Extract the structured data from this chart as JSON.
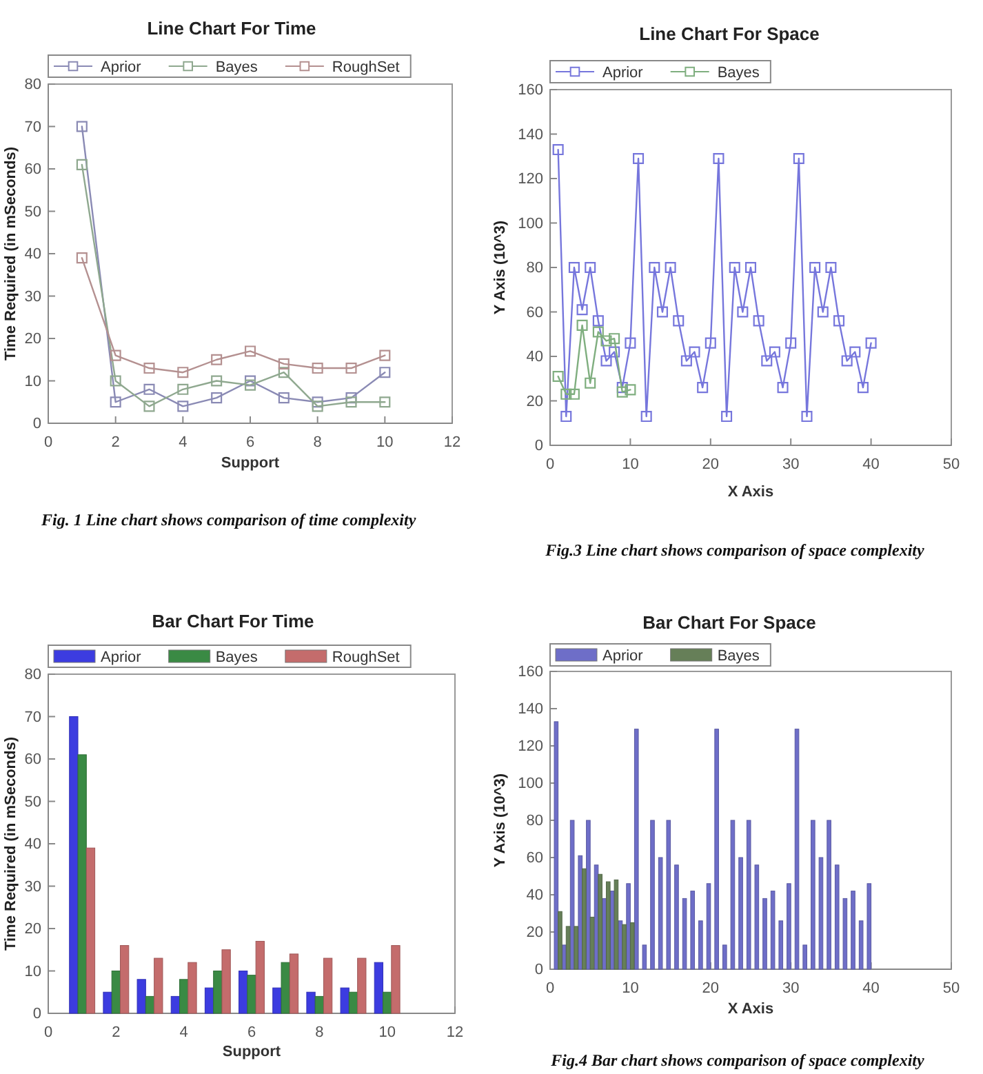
{
  "chart_data": [
    {
      "type": "line",
      "title": "Line Chart For Time",
      "xlabel": "Support",
      "ylabel": "Time Required (in mSeconds)",
      "x": [
        1,
        2,
        3,
        4,
        5,
        6,
        7,
        8,
        9,
        10
      ],
      "xlim": [
        0,
        12
      ],
      "xticks": [
        0,
        2,
        4,
        6,
        8,
        10,
        12
      ],
      "ylim": [
        0,
        80
      ],
      "yticks": [
        0,
        10,
        20,
        30,
        40,
        50,
        60,
        70,
        80
      ],
      "legend": "top left",
      "marker": "square",
      "series": [
        {
          "name": "Aprior",
          "color": "#8a8ab4",
          "values": [
            70,
            5,
            8,
            4,
            6,
            10,
            6,
            5,
            6,
            12
          ]
        },
        {
          "name": "Bayes",
          "color": "#8fa88f",
          "values": [
            61,
            10,
            4,
            8,
            10,
            9,
            12,
            4,
            5,
            5
          ]
        },
        {
          "name": "RoughSet",
          "color": "#b49090",
          "values": [
            39,
            16,
            13,
            12,
            15,
            17,
            14,
            13,
            13,
            16
          ]
        }
      ],
      "annotations": [
        "Fig. 1 Line chart shows comparison of time complexity"
      ]
    },
    {
      "type": "line",
      "title": "Line Chart For Space",
      "xlabel": "X Axis",
      "ylabel": "Y Axis (10^3)",
      "x": [
        1,
        2,
        3,
        4,
        5,
        6,
        7,
        8,
        9,
        10,
        11,
        12,
        13,
        14,
        15,
        16,
        17,
        18,
        19,
        20,
        21,
        22,
        23,
        24,
        25,
        26,
        27,
        28,
        29,
        30,
        31,
        32,
        33,
        34,
        35,
        36,
        37,
        38,
        39,
        40
      ],
      "xlim": [
        0,
        50
      ],
      "xticks": [
        0,
        10,
        20,
        30,
        40,
        50
      ],
      "ylim": [
        0,
        160
      ],
      "yticks": [
        0,
        20,
        40,
        60,
        80,
        100,
        120,
        140,
        160
      ],
      "legend": "top left",
      "marker": "square",
      "series": [
        {
          "name": "Aprior",
          "color": "#7676dc",
          "values": [
            133,
            13,
            80,
            61,
            80,
            56,
            38,
            42,
            26,
            46,
            129,
            13,
            80,
            60,
            80,
            56,
            38,
            42,
            26,
            46,
            129,
            13,
            80,
            60,
            80,
            56,
            38,
            42,
            26,
            46,
            129,
            13,
            80,
            60,
            80,
            56,
            38,
            42,
            26,
            46
          ]
        },
        {
          "name": "Bayes",
          "color": "#7fae7f",
          "x": [
            1,
            2,
            3,
            4,
            5,
            6,
            7,
            8,
            9,
            10
          ],
          "values": [
            31,
            23,
            23,
            54,
            28,
            51,
            47,
            48,
            24,
            25
          ]
        }
      ],
      "annotations": [
        "Fig.3 Line chart shows comparison of space complexity"
      ]
    },
    {
      "type": "bar",
      "title": "Bar Chart For Time",
      "xlabel": "Support",
      "ylabel": "Time Required (in mSeconds)",
      "x": [
        1,
        2,
        3,
        4,
        5,
        6,
        7,
        8,
        9,
        10
      ],
      "xlim": [
        0,
        12
      ],
      "xticks": [
        0,
        2,
        4,
        6,
        8,
        10,
        12
      ],
      "ylim": [
        0,
        80
      ],
      "yticks": [
        0,
        10,
        20,
        30,
        40,
        50,
        60,
        70,
        80
      ],
      "legend": "top left",
      "series": [
        {
          "name": "Aprior",
          "color": "#3c3ce0",
          "values": [
            70,
            5,
            8,
            4,
            6,
            10,
            6,
            5,
            6,
            12
          ]
        },
        {
          "name": "Bayes",
          "color": "#3a8a44",
          "values": [
            61,
            10,
            4,
            8,
            10,
            9,
            12,
            4,
            5,
            5
          ]
        },
        {
          "name": "RoughSet",
          "color": "#c46c6c",
          "values": [
            39,
            16,
            13,
            12,
            15,
            17,
            14,
            13,
            13,
            16
          ]
        }
      ]
    },
    {
      "type": "bar",
      "title": "Bar Chart For Space",
      "xlabel": "X Axis",
      "ylabel": "Y Axis (10^3)",
      "x": [
        1,
        2,
        3,
        4,
        5,
        6,
        7,
        8,
        9,
        10,
        11,
        12,
        13,
        14,
        15,
        16,
        17,
        18,
        19,
        20,
        21,
        22,
        23,
        24,
        25,
        26,
        27,
        28,
        29,
        30,
        31,
        32,
        33,
        34,
        35,
        36,
        37,
        38,
        39,
        40
      ],
      "xlim": [
        0,
        50
      ],
      "xticks": [
        0,
        10,
        20,
        30,
        40,
        50
      ],
      "ylim": [
        0,
        160
      ],
      "yticks": [
        0,
        20,
        40,
        60,
        80,
        100,
        120,
        140,
        160
      ],
      "legend": "top left",
      "series": [
        {
          "name": "Aprior",
          "color": "#6e6ec8",
          "values": [
            133,
            13,
            80,
            61,
            80,
            56,
            38,
            42,
            26,
            46,
            129,
            13,
            80,
            60,
            80,
            56,
            38,
            42,
            26,
            46,
            129,
            13,
            80,
            60,
            80,
            56,
            38,
            42,
            26,
            46,
            129,
            13,
            80,
            60,
            80,
            56,
            38,
            42,
            26,
            46
          ]
        },
        {
          "name": "Bayes",
          "color": "#667f58",
          "x": [
            1,
            2,
            3,
            4,
            5,
            6,
            7,
            8,
            9,
            10
          ],
          "values": [
            31,
            23,
            23,
            54,
            28,
            51,
            47,
            48,
            24,
            25
          ]
        }
      ],
      "annotations": [
        "Fig.4 Bar chart shows comparison of space complexity"
      ]
    }
  ]
}
